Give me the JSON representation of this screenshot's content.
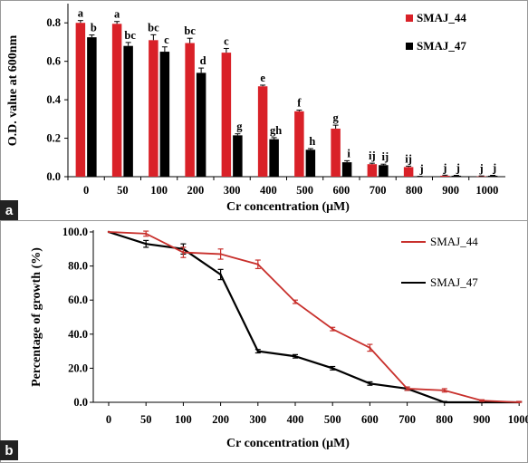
{
  "chart_data": [
    {
      "panel": "a",
      "type": "bar",
      "categories": [
        "0",
        "50",
        "100",
        "200",
        "300",
        "400",
        "500",
        "600",
        "700",
        "800",
        "900",
        "1000"
      ],
      "series": [
        {
          "name": "SMAJ_44",
          "values": [
            0.8,
            0.795,
            0.71,
            0.695,
            0.645,
            0.47,
            0.34,
            0.25,
            0.065,
            0.05,
            0.005,
            0.002
          ],
          "errors": [
            0.012,
            0.012,
            0.028,
            0.025,
            0.022,
            0.006,
            0.006,
            0.018,
            0.005,
            0.005,
            0.003,
            0.002
          ],
          "labels": [
            "a",
            "a",
            "bc",
            "bc",
            "c",
            "e",
            "f",
            "g",
            "ij",
            "ij",
            "j",
            "j"
          ]
        },
        {
          "name": "SMAJ_47",
          "values": [
            0.725,
            0.68,
            0.65,
            0.54,
            0.215,
            0.195,
            0.14,
            0.075,
            0.06,
            0.0,
            0.005,
            0.005
          ],
          "errors": [
            0.012,
            0.018,
            0.025,
            0.025,
            0.008,
            0.008,
            0.006,
            0.008,
            0.005,
            0.002,
            0.002,
            0.002
          ],
          "labels": [
            "b",
            "bc",
            "c",
            "d",
            "g",
            "gh",
            "h",
            "i",
            "ij",
            "j",
            "j",
            "j"
          ]
        }
      ],
      "xlabel": "Cr concentration (μM)",
      "ylabel": "O.D. value at 600nm",
      "ylim": [
        0,
        0.9
      ],
      "yticks": [
        "0.0",
        "0.2",
        "0.4",
        "0.6",
        "0.8"
      ],
      "legend_position": "top-right",
      "colors": {
        "SMAJ_44": "#d92128",
        "SMAJ_47": "#000000"
      }
    },
    {
      "panel": "b",
      "type": "line",
      "x": [
        0,
        50,
        100,
        200,
        300,
        400,
        500,
        600,
        700,
        800,
        900,
        1000
      ],
      "xticks": [
        "0",
        "50",
        "100",
        "200",
        "300",
        "400",
        "500",
        "600",
        "700",
        "800",
        "900",
        "1000"
      ],
      "series": [
        {
          "name": "SMAJ_44",
          "values": [
            100,
            99,
            88,
            87,
            81,
            59,
            43,
            32,
            8,
            7,
            1,
            0
          ],
          "errors": [
            0,
            1.5,
            3,
            3,
            2.5,
            1,
            1,
            2,
            1,
            1,
            0.5,
            0.5
          ]
        },
        {
          "name": "SMAJ_47",
          "values": [
            100,
            93,
            90,
            75,
            30,
            27,
            20,
            11,
            8,
            0,
            0,
            0
          ],
          "errors": [
            0,
            2,
            3,
            3,
            1,
            1,
            1,
            1,
            1,
            0.5,
            0.5,
            0.5
          ]
        }
      ],
      "xlabel": "Cr concentration (μM)",
      "ylabel": "Percentage of growth (%)",
      "ylim": [
        0,
        100
      ],
      "yticks": [
        "0.0",
        "20.0",
        "40.0",
        "60.0",
        "80.0",
        "100.0"
      ],
      "legend_position": "right",
      "colors": {
        "SMAJ_44": "#c8302c",
        "SMAJ_47": "#000000"
      }
    }
  ],
  "panel_labels": {
    "a": "a",
    "b": "b"
  }
}
